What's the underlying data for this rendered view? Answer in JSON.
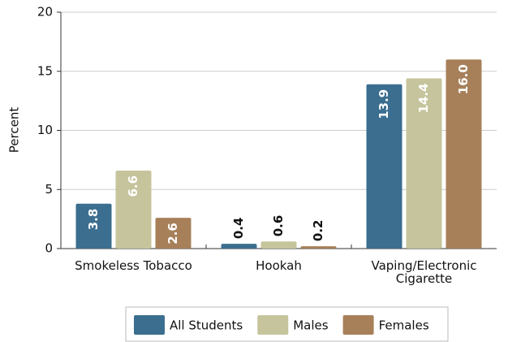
{
  "chart_data": {
    "type": "bar",
    "categories": [
      "Smokeless Tobacco",
      "Hookah",
      "Vaping/Electronic Cigarette"
    ],
    "ylabel": "Percent",
    "ylim": [
      0,
      20
    ],
    "yticks": [
      0,
      5,
      10,
      15,
      20
    ],
    "grid": true,
    "series": [
      {
        "name": "All Students",
        "color": "#3b6e8f",
        "values": [
          3.8,
          0.4,
          13.9
        ],
        "value_labels": [
          "3.8",
          "0.4",
          "13.9"
        ]
      },
      {
        "name": "Males",
        "color": "#c6c49c",
        "values": [
          6.6,
          0.6,
          14.4
        ],
        "value_labels": [
          "6.6",
          "0.6",
          "14.4"
        ]
      },
      {
        "name": "Females",
        "color": "#a7805a",
        "values": [
          2.6,
          0.2,
          16.0
        ],
        "value_labels": [
          "2.6",
          "0.2",
          "16.0"
        ]
      }
    ]
  }
}
